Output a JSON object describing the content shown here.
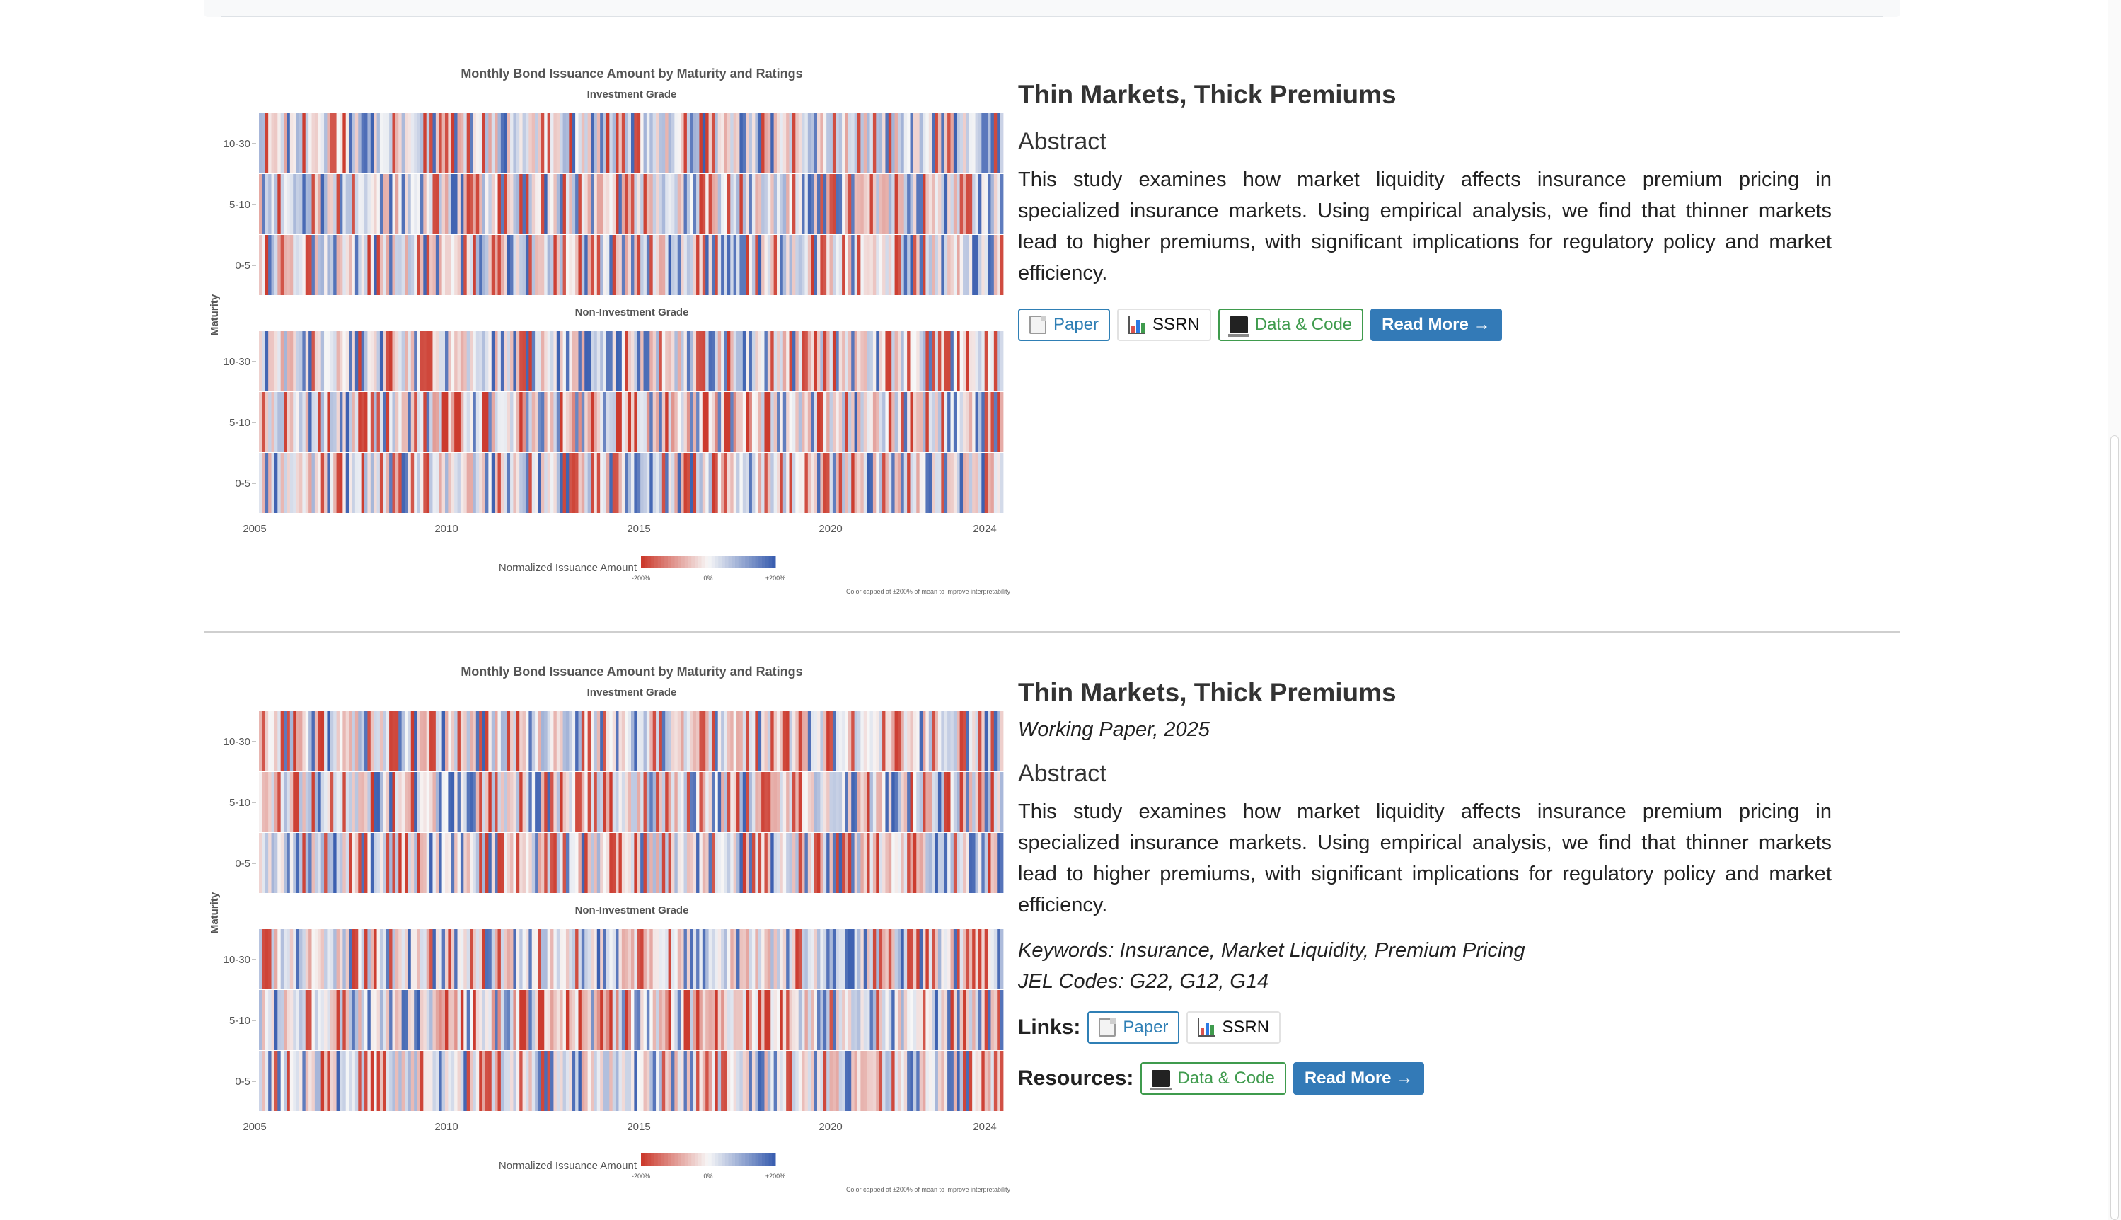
{
  "papers": [
    {
      "title": "Thin Markets, Thick Premiums",
      "venue": "",
      "abstract_heading": "Abstract",
      "abstract": "This study examines how market liquidity affects insurance premium pricing in specialized insurance markets. Using empirical analysis, we find that thinner markets lead to higher premiums, with significant implications for regulatory policy and market efficiency.",
      "buttons": {
        "paper": "Paper",
        "ssrn": "SSRN",
        "data": "Data & Code",
        "more": "Read More →"
      }
    },
    {
      "title": "Thin Markets, Thick Premiums",
      "venue": "Working Paper, 2025",
      "abstract_heading": "Abstract",
      "abstract": "This study examines how market liquidity affects insurance premium pricing in specialized insurance markets. Using empirical analysis, we find that thinner markets lead to higher premiums, with significant implications for regulatory policy and market efficiency.",
      "keywords": "Keywords: Insurance, Market Liquidity, Premium Pricing",
      "jel": "JEL Codes: G22, G12, G14",
      "links_label": "Links:",
      "resources_label": "Resources:",
      "buttons": {
        "paper": "Paper",
        "ssrn": "SSRN",
        "data": "Data & Code",
        "more": "Read More →"
      }
    }
  ],
  "chart_data": {
    "type": "heatmap",
    "title": "Monthly Bond Issuance Amount by Maturity and Ratings",
    "panels": [
      "Investment Grade",
      "Non-Investment Grade"
    ],
    "ylabel": "Maturity",
    "y_categories": [
      "10-30",
      "5-10",
      "0-5"
    ],
    "x_ticks": [
      "2005",
      "2010",
      "2015",
      "2020",
      "2024"
    ],
    "x_range": [
      "2005-01",
      "2024-12"
    ],
    "colorbar": {
      "label": "Normalized Issuance Amount",
      "ticks": [
        "-200%",
        "0%",
        "+200%"
      ],
      "colors": [
        "#cc3b2e",
        "#f7f7f7",
        "#3b5fb0"
      ]
    },
    "note": "Color capped at ±200% of mean to improve interpretability"
  }
}
